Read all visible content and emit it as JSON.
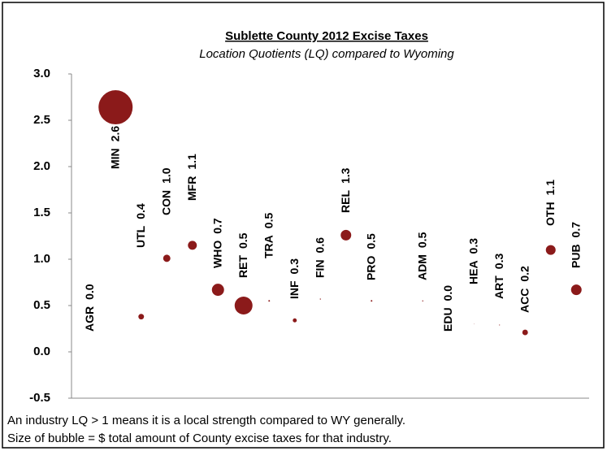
{
  "chart_data": {
    "type": "bubble",
    "title": "Sublette County 2012 Excise Taxes",
    "subtitle": "Location Quotients (LQ) compared to Wyoming",
    "categories": [
      "AGR",
      "MIN",
      "UTL",
      "CON",
      "MFR",
      "WHO",
      "RET",
      "TRA",
      "INF",
      "FIN",
      "REL",
      "PRO",
      null,
      "ADM",
      "EDU",
      "HEA",
      "ART",
      "ACC",
      "OTH",
      "PUB"
    ],
    "values": [
      0.0,
      2.64,
      0.38,
      1.01,
      1.15,
      0.67,
      0.5,
      0.55,
      0.34,
      0.57,
      1.26,
      0.55,
      null,
      0.55,
      0.0,
      0.3,
      0.29,
      0.21,
      1.1,
      0.67
    ],
    "value_labels": [
      "0.0",
      "2.6",
      "0.4",
      "1.0",
      "1.1",
      "0.7",
      "0.5",
      "0.5",
      "0.3",
      "0.6",
      "1.3",
      "0.5",
      null,
      "0.5",
      "0.0",
      "0.3",
      "0.3",
      "0.2",
      "1.1",
      "0.7"
    ],
    "sizes": [
      0,
      441,
      12,
      20,
      30,
      56,
      121,
      1,
      6,
      0.5,
      42,
      1,
      null,
      0.5,
      0,
      0.1,
      0.3,
      12,
      36,
      42
    ],
    "color": "#8b1a1a",
    "ylim": [
      -0.5,
      3.0
    ],
    "yticks": [
      {
        "value": 3.0,
        "label": "3.0"
      },
      2.5,
      {
        "value": 2.0,
        "label": "2.0"
      },
      1.5,
      {
        "value": 1.0,
        "label": "1.0"
      },
      0.5,
      {
        "value": 0.0,
        "label": "0.0"
      },
      -0.5
    ],
    "notes": [
      "An industry LQ > 1 means it is a local strength compared to WY generally.",
      "Size of bubble = $ total amount of County excise taxes for that industry."
    ]
  }
}
